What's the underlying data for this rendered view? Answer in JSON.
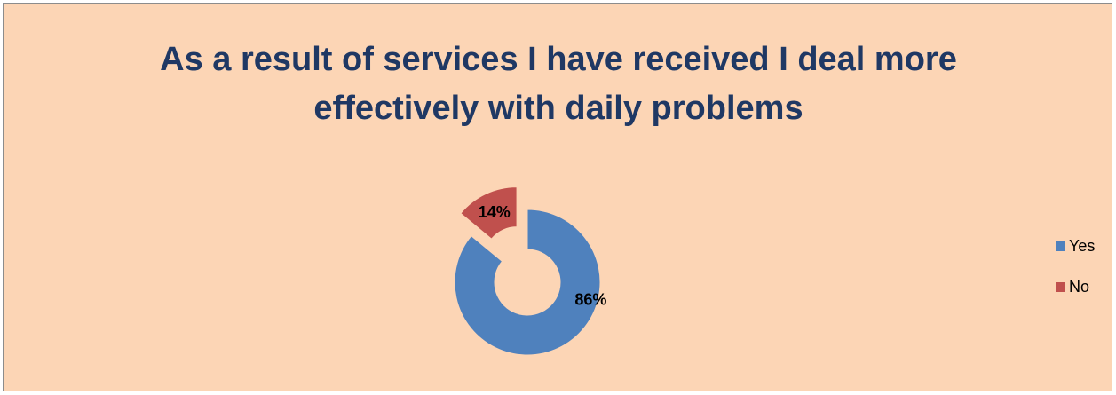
{
  "chart_data": {
    "type": "pie",
    "variant": "doughnut",
    "exploded_slice": "No",
    "title": "As a result of services I have received I deal more effectively with daily problems",
    "title_lines": [
      "As a result of services I have received I deal more",
      "effectively with daily problems"
    ],
    "categories": [
      "Yes",
      "No"
    ],
    "values": [
      86,
      14
    ],
    "data_labels": [
      "86%",
      "14%"
    ],
    "colors": [
      "#4F81BD",
      "#C0504D"
    ],
    "legend_position": "right",
    "background": "#FCD5B5",
    "title_color": "#1F3864"
  }
}
